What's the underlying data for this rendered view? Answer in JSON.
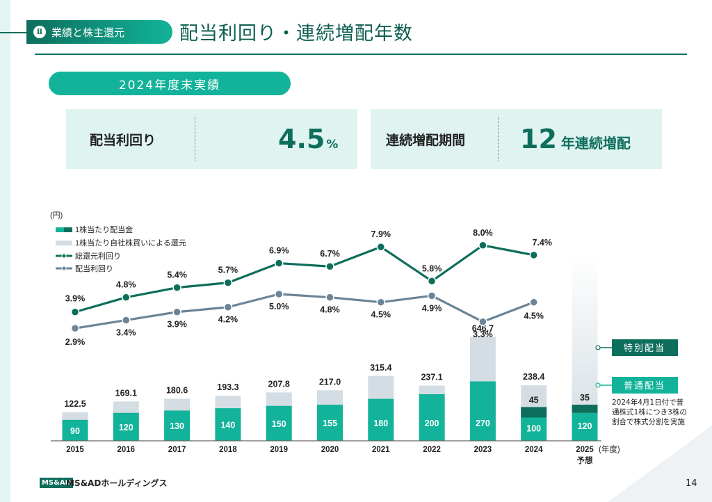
{
  "section": {
    "number": "Ⅱ",
    "label": "業績と株主還元"
  },
  "page_title": "配当利回り・連続増配年数",
  "period_label": "2024年度末実績",
  "kpis": [
    {
      "label": "配当利回り",
      "value": "4.5",
      "unit": "%"
    },
    {
      "label": "連続増配期間",
      "value": "12",
      "unit": "年連続増配"
    }
  ],
  "footer": {
    "logo": "MS&AD",
    "company": "MS&ADホールディングス",
    "page": "14"
  },
  "annotation": {
    "special_label": "特別配当",
    "regular_label": "普通配当",
    "note": "2024年4月1日付で普通株式1株につき3株の割合で株式分割を実施"
  },
  "colors": {
    "regular": "#12b39a",
    "special": "#0e6e5c",
    "buyback": "#d3dde3",
    "total_line": "#0e6e5c",
    "yield_line": "#6b8497",
    "brand": "#0e6e5c"
  },
  "chart_data": {
    "type": "bar",
    "title": "",
    "ylabel": "(円)",
    "xlabel": "(年度)",
    "categories": [
      "2015",
      "2016",
      "2017",
      "2018",
      "2019",
      "2020",
      "2021",
      "2022",
      "2023",
      "2024",
      "2025"
    ],
    "category_sublabels": [
      "",
      "",
      "",
      "",
      "",
      "",
      "",
      "",
      "",
      "",
      "予想"
    ],
    "legend": [
      "1株当たり配当金",
      "1株当たり自社株買いによる還元",
      "総還元利回り",
      "配当利回り"
    ],
    "legend_position": "top-left",
    "series": [
      {
        "name": "1株当たり配当金(普通配当)",
        "kind": "bar",
        "values": [
          90,
          120,
          130,
          140,
          150,
          155,
          180,
          200,
          270,
          100,
          120
        ]
      },
      {
        "name": "1株当たり配当金(特別配当)",
        "kind": "bar",
        "values": [
          null,
          null,
          null,
          null,
          null,
          null,
          null,
          null,
          null,
          45,
          35
        ]
      },
      {
        "name": "1株当たり自社株買いによる還元 (total label)",
        "kind": "bar_total",
        "values": [
          122.5,
          169.1,
          180.6,
          193.3,
          207.8,
          217.0,
          315.4,
          237.1,
          646.7,
          238.4,
          null
        ]
      },
      {
        "name": "総還元利回り",
        "kind": "line",
        "unit": "%",
        "values": [
          3.9,
          4.8,
          5.4,
          5.7,
          6.9,
          6.7,
          7.9,
          5.8,
          8.0,
          7.4,
          null
        ]
      },
      {
        "name": "配当利回り",
        "kind": "line",
        "unit": "%",
        "values": [
          2.9,
          3.4,
          3.9,
          4.2,
          5.0,
          4.8,
          4.5,
          4.9,
          3.3,
          4.5,
          null
        ]
      }
    ],
    "notes": [
      "2024年4月1日付で普通株式1株につき3株の割合で株式分割を実施"
    ]
  }
}
